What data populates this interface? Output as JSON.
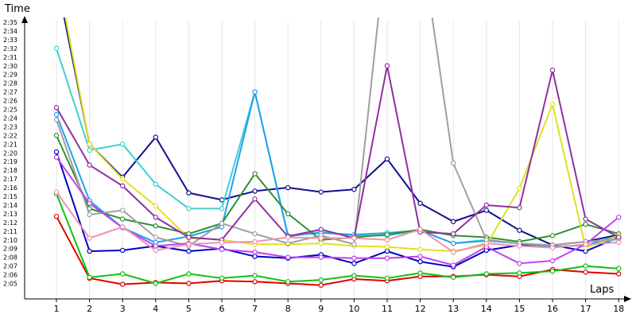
{
  "chart_data": {
    "type": "line",
    "xlabel": "Laps",
    "ylabel": "Time",
    "x": [
      1,
      2,
      3,
      4,
      5,
      6,
      7,
      8,
      9,
      10,
      11,
      12,
      13,
      14,
      15,
      16,
      17,
      18
    ],
    "y_tick_labels": [
      "2:05",
      "2:06",
      "2:07",
      "2:08",
      "2:09",
      "2:10",
      "2:11",
      "2:12",
      "2:13",
      "2:14",
      "2:15",
      "2:16",
      "2:17",
      "2:18",
      "2:19",
      "2:20",
      "2:21",
      "2:22",
      "2:23",
      "2:24",
      "2:25",
      "2:26",
      "2:27",
      "2:28",
      "2:29",
      "2:30",
      "2:31",
      "2:32",
      "2:33",
      "2:34",
      "2:35"
    ],
    "ylim_seconds": [
      124,
      160
    ],
    "grid": "vertical",
    "series": [
      {
        "color": "#e00000",
        "values": [
          132.7,
          125.6,
          124.9,
          125.1,
          125.0,
          125.3,
          125.2,
          125.0,
          124.8,
          125.5,
          125.3,
          125.8,
          125.8,
          126.0,
          125.8,
          126.6,
          126.3,
          126.1
        ]
      },
      {
        "color": "#10c010",
        "values": [
          135.3,
          125.7,
          126.1,
          125.0,
          126.1,
          125.6,
          125.9,
          125.2,
          125.4,
          125.9,
          125.6,
          126.2,
          125.7,
          126.1,
          126.2,
          126.4,
          127.0,
          126.7
        ]
      },
      {
        "color": "#0000c8",
        "values": [
          140.1,
          128.7,
          128.8,
          129.3,
          128.7,
          129.0,
          128.1,
          127.9,
          128.3,
          127.3,
          128.7,
          127.5,
          126.9,
          128.8,
          129.4,
          129.4,
          128.7,
          130.3
        ]
      },
      {
        "color": "#101090",
        "values": [
          160.0,
          141.0,
          137.2,
          141.8,
          135.4,
          134.6,
          135.6,
          136.0,
          135.5,
          135.8,
          139.3,
          134.2,
          132.1,
          133.4,
          131.1,
          129.4,
          129.8,
          130.6
        ]
      },
      {
        "color": "#40d0d0",
        "values": [
          152.0,
          140.3,
          141.0,
          136.4,
          133.6,
          133.6,
          147.0,
          130.4,
          130.9,
          130.5,
          130.5,
          131.1,
          129.6,
          130.0,
          129.6,
          129.2,
          129.4,
          130.1
        ]
      },
      {
        "color": "#20a0f0",
        "values": [
          144.4,
          134.5,
          131.4,
          129.7,
          130.4,
          131.5,
          147.0,
          130.5,
          130.8,
          130.6,
          130.8,
          131.1,
          129.6,
          129.9,
          129.6,
          129.2,
          129.4,
          130.5
        ]
      },
      {
        "color": "#309030",
        "values": [
          142.0,
          133.6,
          132.4,
          131.6,
          130.7,
          131.9,
          137.6,
          133.0,
          130.0,
          130.3,
          130.6,
          131.2,
          130.5,
          130.3,
          129.8,
          130.5,
          131.8,
          130.7
        ]
      },
      {
        "color": "#e0e020",
        "values": [
          161.0,
          141.0,
          137.0,
          133.9,
          130.2,
          130.0,
          129.5,
          129.5,
          129.6,
          129.3,
          129.2,
          128.9,
          128.7,
          129.4,
          135.9,
          145.6,
          129.1,
          130.5
        ]
      },
      {
        "color": "#a0a0a0",
        "values": [
          143.8,
          132.9,
          133.4,
          130.3,
          129.3,
          131.9,
          130.7,
          129.6,
          130.5,
          129.5,
          165.0,
          165.0,
          138.8,
          130.0,
          129.6,
          129.4,
          129.8,
          130.1
        ]
      },
      {
        "color": "#9030a0",
        "values": [
          145.2,
          138.6,
          136.2,
          132.6,
          130.3,
          130.0,
          134.7,
          130.4,
          131.2,
          130.2,
          150.0,
          130.9,
          130.7,
          134.0,
          133.7,
          149.5,
          132.4,
          130.3
        ]
      },
      {
        "color": "#c040f0",
        "values": [
          139.5,
          134.2,
          131.4,
          129.3,
          129.6,
          128.9,
          128.6,
          128.0,
          128.0,
          127.9,
          127.9,
          128.1,
          127.1,
          129.2,
          127.3,
          127.6,
          129.5,
          132.6
        ]
      },
      {
        "color": "#f090b0",
        "values": [
          135.5,
          130.2,
          131.5,
          128.8,
          129.5,
          129.7,
          129.8,
          130.3,
          130.2,
          130.2,
          130.0,
          131.2,
          128.6,
          129.6,
          129.3,
          129.1,
          129.5,
          129.7
        ]
      }
    ]
  }
}
